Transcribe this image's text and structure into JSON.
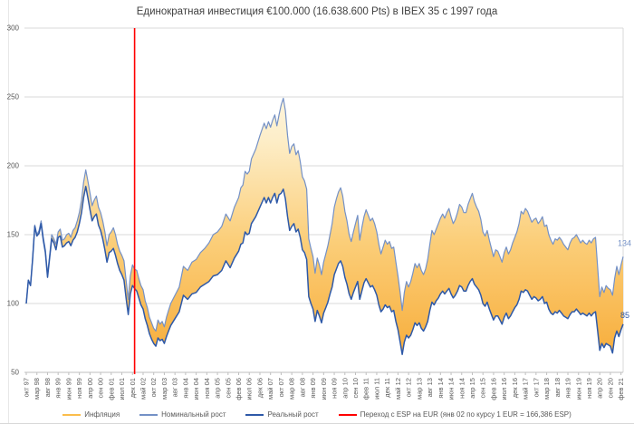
{
  "title": "Единократная инвестиция €100.000 (16.638.600 Pts) в IBEX 35 с 1997 года",
  "colors": {
    "nominal": "#7491C6",
    "real": "#2E59A8",
    "inflation_swatch": "#FBBD4B",
    "inflation_gradient_top": "#FFFFFF",
    "inflation_gradient_mid1": "#FDEEC9",
    "inflation_gradient_mid2": "#FBCE79",
    "inflation_gradient_bottom": "#F7A933",
    "transition_line": "#FF0000",
    "gridline": "#D9D9D9",
    "axis_line": "#BFBFBF",
    "axis_text": "#595959",
    "title_text": "#404040"
  },
  "legend": {
    "items": [
      {
        "label": "Инфляция",
        "color": "#FBBD4B"
      },
      {
        "label": "Номинальный рост",
        "color": "#7491C6"
      },
      {
        "label": "Реальный рост",
        "color": "#2E59A8"
      },
      {
        "label": "Переход с ESP на EUR (янв 02 по курсу 1 EUR = 166,386 ESP)",
        "color": "#FF0000"
      }
    ]
  },
  "chart_data": {
    "type": "line",
    "title": "Единократная инвестиция €100.000 (16.638.600 Pts) в IBEX 35 с 1997 года",
    "ylim": [
      50,
      300
    ],
    "y_ticks": [
      300,
      250,
      200,
      150,
      100,
      50
    ],
    "grid": true,
    "legend_position": "bottom",
    "x_unit": "months since Oct 1997, labels every 5 months",
    "x_tick_labels": [
      "окт 97",
      "мар 98",
      "авг 98",
      "янв 99",
      "июн 99",
      "ноя 99",
      "апр 00",
      "сен 00",
      "фев 01",
      "июл 01",
      "дек 01",
      "май 02",
      "окт 02",
      "мар 03",
      "авг 03",
      "янв 04",
      "июн 04",
      "ноя 04",
      "апр 05",
      "сен 05",
      "фев 06",
      "июл 06",
      "дек 06",
      "май 07",
      "окт 07",
      "мар 08",
      "авг 08",
      "янв 09",
      "июн 09",
      "ноя 09",
      "апр 10",
      "сен 10",
      "фев 11",
      "июл 11",
      "дек 11",
      "май 12",
      "окт 12",
      "мар 13",
      "авг 13",
      "янв 14",
      "июн 14",
      "ноя 14",
      "апр 15",
      "сен 15",
      "фев 16",
      "июл 16",
      "дек 16",
      "май 17",
      "окт 17",
      "мар 18",
      "авг 18",
      "янв 19",
      "июн 19",
      "ноя 19",
      "апр 20",
      "сен 20",
      "фев 21"
    ],
    "x_label_step_months": 5,
    "series_names": [
      "Номинальный рост",
      "Реальный рост"
    ],
    "band_name": "Инфляция",
    "band_note": "orange gradient area between nominal and real lines",
    "points": [
      [
        0,
        100,
        100
      ],
      [
        1,
        117,
        117
      ],
      [
        2,
        113,
        113
      ],
      [
        3,
        133,
        132
      ],
      [
        4,
        157,
        156
      ],
      [
        5,
        150,
        149
      ],
      [
        6,
        153,
        151
      ],
      [
        7,
        160,
        158
      ],
      [
        8,
        148,
        146
      ],
      [
        9,
        139,
        137
      ],
      [
        10,
        121,
        119
      ],
      [
        11,
        135,
        133
      ],
      [
        12,
        150,
        147
      ],
      [
        13,
        147,
        144
      ],
      [
        14,
        143,
        139
      ],
      [
        15,
        152,
        148
      ],
      [
        16,
        154,
        149
      ],
      [
        17,
        146,
        141
      ],
      [
        18,
        147,
        142
      ],
      [
        19,
        150,
        144
      ],
      [
        20,
        151,
        145
      ],
      [
        21,
        148,
        142
      ],
      [
        22,
        153,
        146
      ],
      [
        23,
        155,
        148
      ],
      [
        24,
        160,
        152
      ],
      [
        25,
        166,
        158
      ],
      [
        26,
        175,
        166
      ],
      [
        27,
        188,
        177
      ],
      [
        28,
        197,
        185
      ],
      [
        29,
        189,
        177
      ],
      [
        30,
        180,
        168
      ],
      [
        31,
        171,
        160
      ],
      [
        32,
        175,
        163
      ],
      [
        33,
        178,
        165
      ],
      [
        34,
        170,
        157
      ],
      [
        35,
        166,
        153
      ],
      [
        36,
        160,
        147
      ],
      [
        37,
        152,
        139
      ],
      [
        38,
        142,
        130
      ],
      [
        39,
        150,
        137
      ],
      [
        40,
        152,
        138
      ],
      [
        41,
        155,
        140
      ],
      [
        42,
        150,
        135
      ],
      [
        43,
        143,
        129
      ],
      [
        44,
        138,
        124
      ],
      [
        45,
        135,
        121
      ],
      [
        46,
        131,
        117
      ],
      [
        47,
        117,
        104
      ],
      [
        48,
        103,
        92
      ],
      [
        49,
        120,
        107
      ],
      [
        50,
        128,
        113
      ],
      [
        51,
        125,
        111
      ],
      [
        52,
        124,
        109
      ],
      [
        53,
        118,
        104
      ],
      [
        54,
        113,
        99
      ],
      [
        55,
        110,
        96
      ],
      [
        56,
        102,
        89
      ],
      [
        57,
        97,
        84
      ],
      [
        58,
        90,
        78
      ],
      [
        59,
        86,
        74
      ],
      [
        60,
        82,
        71
      ],
      [
        61,
        80,
        69
      ],
      [
        62,
        88,
        75
      ],
      [
        63,
        85,
        73
      ],
      [
        64,
        87,
        74
      ],
      [
        65,
        83,
        71
      ],
      [
        66,
        90,
        76
      ],
      [
        67,
        95,
        80
      ],
      [
        68,
        100,
        84
      ],
      [
        70,
        106,
        89
      ],
      [
        72,
        112,
        94
      ],
      [
        74,
        127,
        106
      ],
      [
        76,
        124,
        103
      ],
      [
        78,
        130,
        107
      ],
      [
        80,
        132,
        108
      ],
      [
        82,
        137,
        112
      ],
      [
        84,
        140,
        114
      ],
      [
        86,
        144,
        116
      ],
      [
        88,
        150,
        120
      ],
      [
        90,
        152,
        121
      ],
      [
        92,
        156,
        124
      ],
      [
        94,
        165,
        131
      ],
      [
        96,
        160,
        126
      ],
      [
        98,
        170,
        133
      ],
      [
        100,
        177,
        138
      ],
      [
        101,
        184,
        143
      ],
      [
        102,
        186,
        144
      ],
      [
        103,
        196,
        152
      ],
      [
        104,
        194,
        150
      ],
      [
        105,
        196,
        151
      ],
      [
        106,
        205,
        158
      ],
      [
        108,
        212,
        163
      ],
      [
        110,
        222,
        170
      ],
      [
        112,
        231,
        177
      ],
      [
        113,
        227,
        173
      ],
      [
        114,
        232,
        177
      ],
      [
        115,
        228,
        173
      ],
      [
        116,
        233,
        177
      ],
      [
        117,
        237,
        180
      ],
      [
        118,
        229,
        173
      ],
      [
        119,
        237,
        179
      ],
      [
        120,
        244,
        180
      ],
      [
        121,
        249,
        183
      ],
      [
        122,
        240,
        176
      ],
      [
        123,
        222,
        163
      ],
      [
        124,
        209,
        153
      ],
      [
        125,
        214,
        156
      ],
      [
        126,
        216,
        158
      ],
      [
        127,
        208,
        152
      ],
      [
        128,
        211,
        154
      ],
      [
        129,
        203,
        148
      ],
      [
        130,
        192,
        139
      ],
      [
        131,
        189,
        137
      ],
      [
        132,
        183,
        132
      ],
      [
        133,
        147,
        105
      ],
      [
        134,
        140,
        100
      ],
      [
        135,
        134,
        96
      ],
      [
        136,
        122,
        87
      ],
      [
        137,
        133,
        95
      ],
      [
        138,
        128,
        91
      ],
      [
        139,
        121,
        86
      ],
      [
        140,
        130,
        93
      ],
      [
        141,
        136,
        97
      ],
      [
        142,
        142,
        101
      ],
      [
        143,
        150,
        107
      ],
      [
        144,
        158,
        112
      ],
      [
        145,
        170,
        121
      ],
      [
        146,
        176,
        125
      ],
      [
        147,
        181,
        129
      ],
      [
        148,
        184,
        131
      ],
      [
        149,
        178,
        127
      ],
      [
        150,
        167,
        119
      ],
      [
        151,
        160,
        114
      ],
      [
        152,
        150,
        107
      ],
      [
        153,
        145,
        103
      ],
      [
        154,
        152,
        108
      ],
      [
        155,
        158,
        112
      ],
      [
        156,
        164,
        116
      ],
      [
        157,
        146,
        103
      ],
      [
        158,
        155,
        109
      ],
      [
        159,
        163,
        115
      ],
      [
        160,
        168,
        118
      ],
      [
        161,
        164,
        115
      ],
      [
        162,
        160,
        112
      ],
      [
        163,
        162,
        113
      ],
      [
        164,
        158,
        110
      ],
      [
        165,
        152,
        106
      ],
      [
        166,
        143,
        99
      ],
      [
        167,
        136,
        94
      ],
      [
        168,
        141,
        96
      ],
      [
        169,
        146,
        99
      ],
      [
        170,
        143,
        97
      ],
      [
        171,
        145,
        98
      ],
      [
        172,
        140,
        94
      ],
      [
        173,
        141,
        95
      ],
      [
        174,
        130,
        87
      ],
      [
        175,
        120,
        81
      ],
      [
        176,
        108,
        72
      ],
      [
        177,
        95,
        63
      ],
      [
        178,
        108,
        72
      ],
      [
        179,
        116,
        77
      ],
      [
        180,
        112,
        75
      ],
      [
        181,
        116,
        77
      ],
      [
        182,
        122,
        81
      ],
      [
        183,
        129,
        86
      ],
      [
        184,
        126,
        84
      ],
      [
        185,
        129,
        86
      ],
      [
        186,
        124,
        82
      ],
      [
        187,
        121,
        80
      ],
      [
        188,
        125,
        83
      ],
      [
        189,
        132,
        87
      ],
      [
        190,
        143,
        95
      ],
      [
        191,
        153,
        101
      ],
      [
        192,
        150,
        99
      ],
      [
        193,
        154,
        102
      ],
      [
        194,
        158,
        104
      ],
      [
        195,
        162,
        107
      ],
      [
        196,
        165,
        109
      ],
      [
        197,
        162,
        107
      ],
      [
        198,
        166,
        109
      ],
      [
        199,
        169,
        111
      ],
      [
        200,
        163,
        107
      ],
      [
        201,
        158,
        104
      ],
      [
        202,
        161,
        106
      ],
      [
        203,
        166,
        109
      ],
      [
        204,
        172,
        113
      ],
      [
        205,
        170,
        112
      ],
      [
        206,
        166,
        109
      ],
      [
        207,
        166,
        109
      ],
      [
        208,
        172,
        113
      ],
      [
        209,
        176,
        116
      ],
      [
        210,
        180,
        118
      ],
      [
        211,
        174,
        114
      ],
      [
        212,
        170,
        112
      ],
      [
        213,
        167,
        110
      ],
      [
        214,
        161,
        106
      ],
      [
        215,
        152,
        100
      ],
      [
        216,
        149,
        98
      ],
      [
        217,
        153,
        101
      ],
      [
        218,
        146,
        96
      ],
      [
        219,
        140,
        92
      ],
      [
        220,
        134,
        88
      ],
      [
        221,
        139,
        91
      ],
      [
        222,
        138,
        91
      ],
      [
        223,
        134,
        88
      ],
      [
        224,
        130,
        85
      ],
      [
        225,
        137,
        90
      ],
      [
        226,
        141,
        93
      ],
      [
        227,
        136,
        89
      ],
      [
        228,
        139,
        91
      ],
      [
        229,
        144,
        94
      ],
      [
        230,
        148,
        97
      ],
      [
        231,
        152,
        99
      ],
      [
        232,
        158,
        103
      ],
      [
        233,
        167,
        109
      ],
      [
        234,
        165,
        108
      ],
      [
        235,
        169,
        110
      ],
      [
        236,
        167,
        109
      ],
      [
        237,
        163,
        106
      ],
      [
        238,
        159,
        103
      ],
      [
        239,
        161,
        105
      ],
      [
        240,
        162,
        104
      ],
      [
        241,
        158,
        102
      ],
      [
        242,
        160,
        103
      ],
      [
        243,
        163,
        105
      ],
      [
        244,
        156,
        100
      ],
      [
        245,
        157,
        101
      ],
      [
        246,
        150,
        96
      ],
      [
        247,
        146,
        93
      ],
      [
        248,
        143,
        92
      ],
      [
        249,
        147,
        94
      ],
      [
        250,
        146,
        93
      ],
      [
        251,
        148,
        95
      ],
      [
        252,
        146,
        93
      ],
      [
        253,
        143,
        91
      ],
      [
        254,
        141,
        90
      ],
      [
        255,
        139,
        89
      ],
      [
        256,
        144,
        92
      ],
      [
        257,
        147,
        94
      ],
      [
        258,
        148,
        94
      ],
      [
        259,
        150,
        96
      ],
      [
        260,
        147,
        94
      ],
      [
        261,
        144,
        92
      ],
      [
        262,
        146,
        93
      ],
      [
        263,
        144,
        92
      ],
      [
        264,
        143,
        91
      ],
      [
        265,
        146,
        93
      ],
      [
        266,
        144,
        91
      ],
      [
        267,
        147,
        93
      ],
      [
        268,
        148,
        94
      ],
      [
        269,
        126,
        80
      ],
      [
        270,
        105,
        66
      ],
      [
        271,
        112,
        71
      ],
      [
        272,
        108,
        68
      ],
      [
        273,
        113,
        71
      ],
      [
        274,
        111,
        70
      ],
      [
        275,
        110,
        69
      ],
      [
        276,
        106,
        64
      ],
      [
        277,
        118,
        75
      ],
      [
        278,
        127,
        80
      ],
      [
        279,
        121,
        76
      ],
      [
        280,
        128,
        81
      ],
      [
        281,
        134,
        85
      ]
    ],
    "transition": {
      "month": 51,
      "label": "Переход с ESP на EUR (янв 02 по курсу 1 EUR = 166,386 ESP)"
    },
    "end_labels": {
      "nominal": "134",
      "real": "85"
    }
  }
}
